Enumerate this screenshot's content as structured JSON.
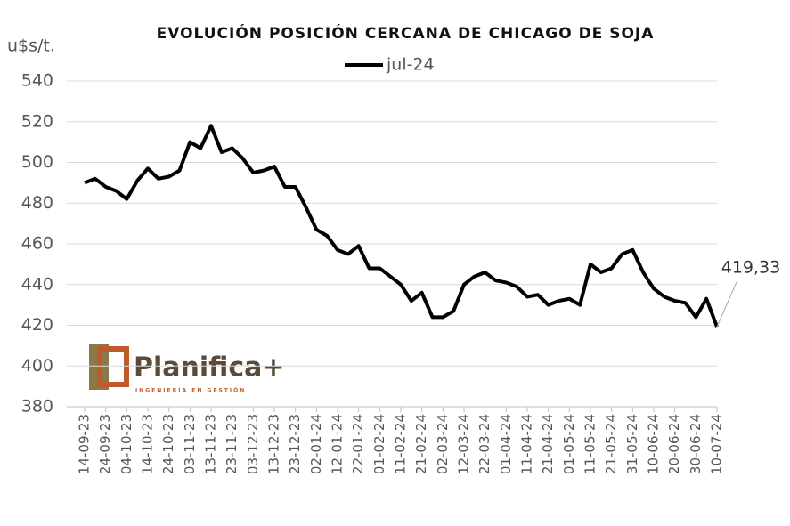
{
  "chart_data": {
    "type": "line",
    "title": "EVOLUCIÓN POSICIÓN CERCANA DE CHICAGO DE SOJA",
    "y_label": "u$s/t.",
    "logo": {
      "name": "Planifica+",
      "tagline": "INGENIERÍA EN GESTIÓN"
    },
    "x": [
      "14-09-23",
      "19-09-23",
      "24-09-23",
      "29-09-23",
      "04-10-23",
      "09-10-23",
      "14-10-23",
      "19-10-23",
      "24-10-23",
      "29-10-23",
      "03-11-23",
      "08-11-23",
      "13-11-23",
      "18-11-23",
      "23-11-23",
      "28-11-23",
      "03-12-23",
      "08-12-23",
      "13-12-23",
      "18-12-23",
      "23-12-23",
      "28-12-23",
      "02-01-24",
      "07-01-24",
      "12-01-24",
      "17-01-24",
      "22-01-24",
      "27-01-24",
      "01-02-24",
      "06-02-24",
      "11-02-24",
      "16-02-24",
      "21-02-24",
      "26-02-24",
      "02-03-24",
      "07-03-24",
      "12-03-24",
      "17-03-24",
      "22-03-24",
      "27-03-24",
      "01-04-24",
      "06-04-24",
      "11-04-24",
      "16-04-24",
      "21-04-24",
      "26-04-24",
      "01-05-24",
      "06-05-24",
      "11-05-24",
      "16-05-24",
      "21-05-24",
      "26-05-24",
      "31-05-24",
      "05-06-24",
      "10-06-24",
      "15-06-24",
      "20-06-24",
      "25-06-24",
      "30-06-24",
      "05-07-24",
      "10-07-24"
    ],
    "series": [
      {
        "name": "jul-24",
        "color": "#000000",
        "values": [
          490,
          492,
          488,
          486,
          482,
          491,
          497,
          492,
          493,
          496,
          510,
          507,
          518,
          505,
          507,
          502,
          495,
          496,
          498,
          488,
          488,
          478,
          467,
          464,
          457,
          455,
          459,
          448,
          448,
          444,
          440,
          432,
          436,
          424,
          424,
          427,
          440,
          444,
          446,
          442,
          441,
          439,
          434,
          435,
          430,
          432,
          433,
          430,
          450,
          446,
          448,
          455,
          457,
          446,
          438,
          434,
          432,
          431,
          424,
          433,
          419.33
        ],
        "value_labels": [
          null,
          null,
          null,
          null,
          null,
          null,
          null,
          null,
          null,
          null,
          null,
          null,
          null,
          null,
          null,
          null,
          null,
          null,
          null,
          null,
          null,
          null,
          null,
          null,
          null,
          null,
          null,
          null,
          null,
          null,
          null,
          null,
          null,
          null,
          null,
          null,
          null,
          null,
          null,
          null,
          null,
          null,
          null,
          null,
          null,
          null,
          null,
          null,
          null,
          null,
          null,
          null,
          null,
          null,
          null,
          null,
          null,
          null,
          null,
          null,
          "419,33"
        ]
      }
    ],
    "xlim": [
      "14-09-23",
      "10-07-24"
    ],
    "xticks": [
      "14-09-23",
      "24-09-23",
      "04-10-23",
      "14-10-23",
      "24-10-23",
      "03-11-23",
      "13-11-23",
      "23-11-23",
      "03-12-23",
      "13-12-23",
      "23-12-23",
      "02-01-24",
      "12-01-24",
      "22-01-24",
      "01-02-24",
      "11-02-24",
      "21-02-24",
      "02-03-24",
      "12-03-24",
      "22-03-24",
      "01-04-24",
      "11-04-24",
      "21-04-24",
      "01-05-24",
      "11-05-24",
      "21-05-24",
      "31-05-24",
      "10-06-24",
      "20-06-24",
      "30-06-24",
      "10-07-24"
    ],
    "ylim": [
      380,
      540
    ],
    "yticks": [
      380,
      400,
      420,
      440,
      460,
      480,
      500,
      520,
      540
    ],
    "grid": true,
    "legend": "top"
  }
}
